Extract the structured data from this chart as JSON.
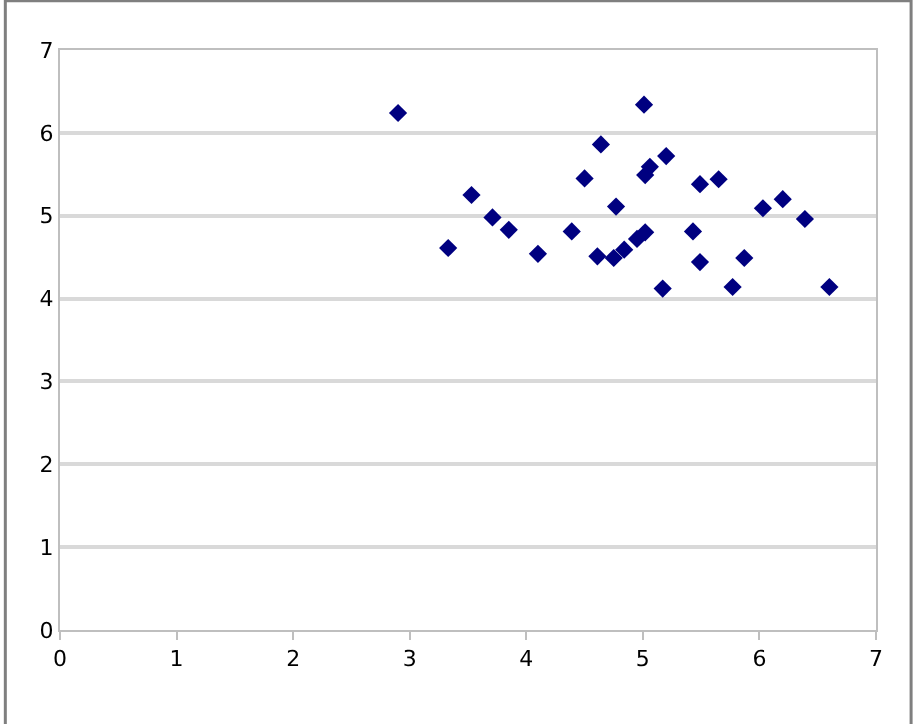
{
  "chart_data": {
    "type": "scatter",
    "marker": "diamond",
    "grid": "y",
    "x": [
      2.9,
      3.33,
      3.53,
      3.71,
      3.85,
      4.1,
      4.39,
      4.5,
      4.61,
      4.64,
      4.75,
      4.77,
      4.84,
      4.95,
      5.01,
      5.02,
      5.02,
      5.06,
      5.17,
      5.2,
      5.43,
      5.49,
      5.49,
      5.65,
      5.77,
      5.87,
      6.03,
      6.2,
      6.39,
      6.6
    ],
    "series": [
      {
        "color": "#000080",
        "values": [
          6.24,
          4.61,
          5.25,
          4.98,
          4.83,
          4.54,
          4.81,
          5.45,
          4.51,
          5.86,
          4.49,
          5.11,
          4.59,
          4.72,
          6.34,
          4.8,
          5.49,
          5.59,
          4.12,
          5.72,
          4.81,
          5.38,
          4.44,
          5.44,
          4.14,
          4.49,
          5.09,
          5.2,
          4.96,
          4.14
        ]
      }
    ],
    "xlim": [
      0,
      7
    ],
    "xticks": [
      0,
      1,
      2,
      3,
      4,
      5,
      6,
      7
    ],
    "ylim": [
      0,
      7
    ],
    "yticks": [
      0,
      1,
      2,
      3,
      4,
      5,
      6,
      7
    ]
  }
}
